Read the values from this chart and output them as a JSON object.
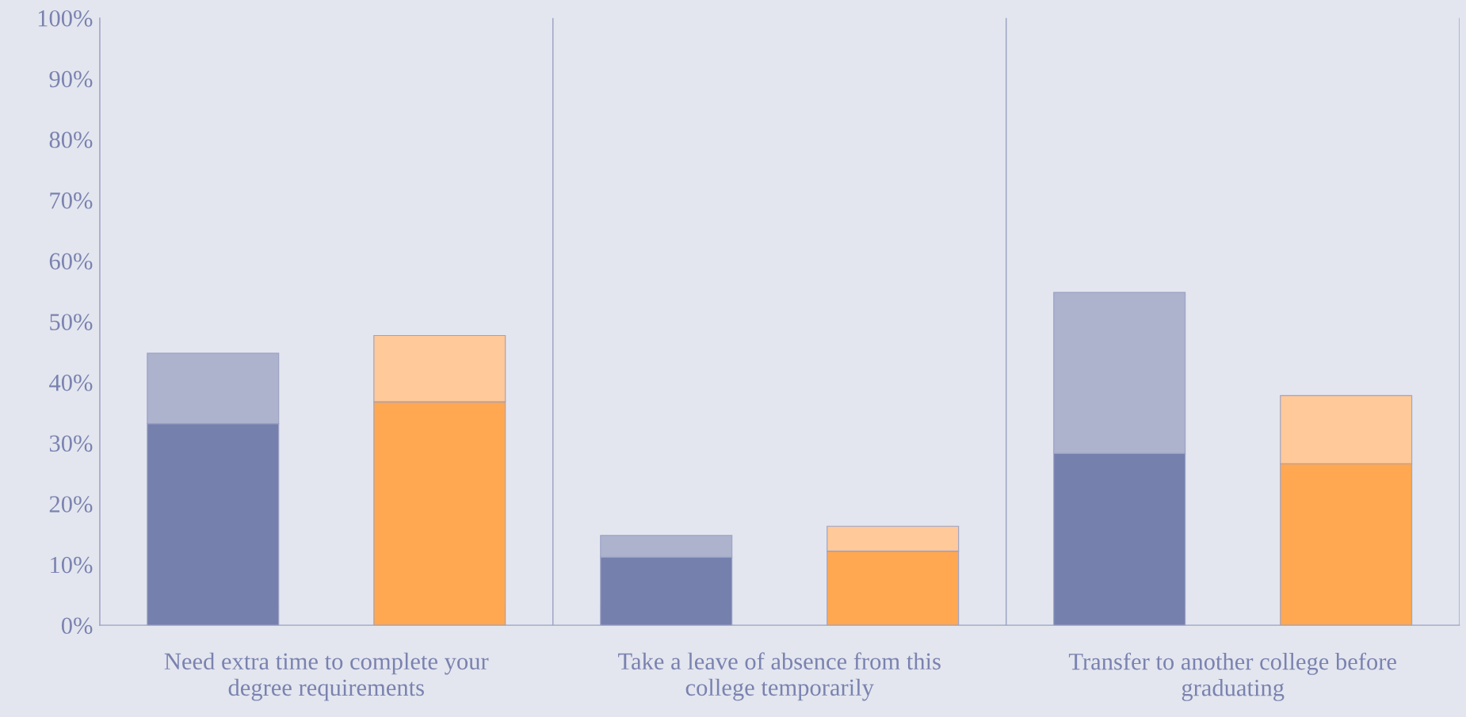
{
  "chart_data": {
    "type": "bar",
    "stacked": true,
    "categories": [
      null,
      null,
      null,
      null,
      null,
      null
    ],
    "series": [
      {
        "colors": [
          "#7580ad",
          "#ffa851",
          "#7580ad",
          "#ffa851",
          "#7580ad",
          "#ffa851"
        ],
        "values": [
          33.2,
          36.8,
          11.2,
          12.2,
          28.3,
          26.6
        ]
      },
      {
        "colors": [
          "#adb2cd",
          "#ffc999",
          "#adb2cd",
          "#ffc999",
          "#adb2cd",
          "#ffc999"
        ],
        "values": [
          11.6,
          10.9,
          3.6,
          4.1,
          26.5,
          11.2
        ]
      }
    ],
    "annotations": [
      "Need extra time to complete your degree requirements",
      "Take a leave of absence from this college temporarily",
      "Transfer to another college before graduating"
    ],
    "ylim": [
      0,
      100
    ],
    "yticks": [
      {
        "value": 0,
        "label": "0%"
      },
      {
        "value": 10,
        "label": "10%"
      },
      {
        "value": 20,
        "label": "20%"
      },
      {
        "value": 30,
        "label": "30%"
      },
      {
        "value": 40,
        "label": "40%"
      },
      {
        "value": 50,
        "label": "50%"
      },
      {
        "value": 60,
        "label": "60%"
      },
      {
        "value": 70,
        "label": "70%"
      },
      {
        "value": 80,
        "label": "80%"
      },
      {
        "value": 90,
        "label": "90%"
      },
      {
        "value": 100,
        "label": "100%"
      }
    ],
    "grid": "x"
  }
}
